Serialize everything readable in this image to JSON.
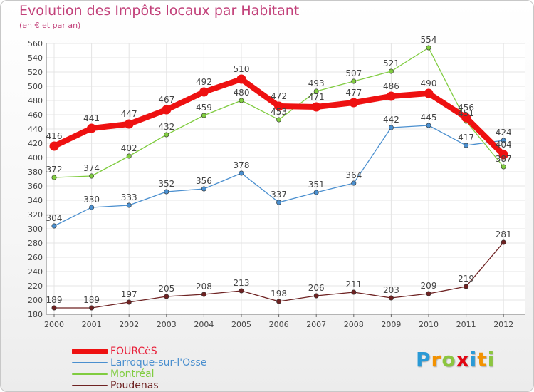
{
  "header": {
    "title": "Evolution des Impôts locaux par Habitant",
    "subtitle": "(en € et par an)"
  },
  "logo": {
    "letters": [
      "P",
      "r",
      "o",
      "x",
      "i",
      "t",
      "i"
    ],
    "colors": [
      "#2a9ad6",
      "#f39200",
      "#8cc63f",
      "#e30613",
      "#2a9ad6",
      "#f39200",
      "#8cc63f"
    ]
  },
  "chart_data": {
    "type": "line",
    "title": "Evolution des Impôts locaux par Habitant",
    "subtitle": "(en € et par an)",
    "xlabel": "",
    "ylabel": "",
    "categories": [
      "2000",
      "2001",
      "2002",
      "2003",
      "2004",
      "2005",
      "2006",
      "2007",
      "2008",
      "2009",
      "2010",
      "2011",
      "2012"
    ],
    "ylim": [
      180,
      560
    ],
    "yticks": [
      180,
      200,
      220,
      240,
      260,
      280,
      300,
      320,
      340,
      360,
      380,
      400,
      420,
      440,
      460,
      480,
      500,
      520,
      540,
      560
    ],
    "grid": true,
    "legend_position": "bottom-left",
    "series": [
      {
        "name": "FOURCèS",
        "color": "#ee1111",
        "emphasis": true,
        "values": [
          416,
          441,
          447,
          467,
          492,
          510,
          472,
          471,
          477,
          486,
          490,
          456,
          404
        ]
      },
      {
        "name": "Larroque-sur-l'Osse",
        "color": "#4a8fcf",
        "emphasis": false,
        "values": [
          304,
          330,
          333,
          352,
          356,
          378,
          337,
          351,
          364,
          442,
          445,
          417,
          424
        ]
      },
      {
        "name": "Montréal",
        "color": "#80cc40",
        "emphasis": false,
        "values": [
          372,
          374,
          402,
          432,
          459,
          480,
          453,
          493,
          507,
          521,
          554,
          451,
          387
        ]
      },
      {
        "name": "Poudenas",
        "color": "#6e2222",
        "emphasis": false,
        "values": [
          189,
          189,
          197,
          205,
          208,
          213,
          198,
          206,
          211,
          203,
          209,
          219,
          281
        ]
      }
    ]
  }
}
